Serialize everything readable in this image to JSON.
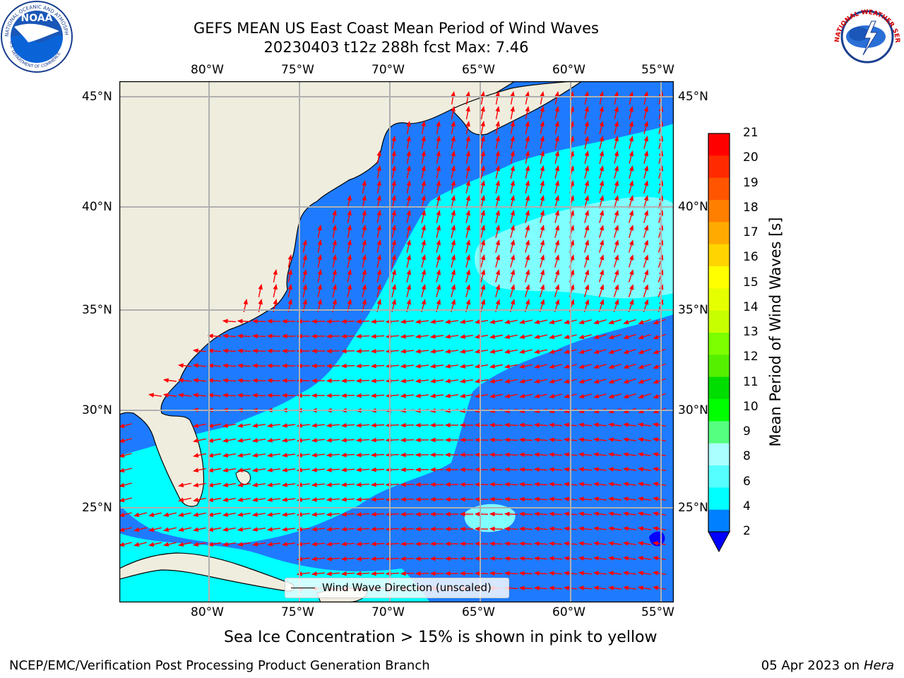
{
  "header": {
    "title_line1": "GEFS MEAN US East Coast Mean Period of Wind Waves",
    "title_line2": "20230403 t12z 288h fcst   Max: 7.46"
  },
  "logos": {
    "left_ring_text": "NATIONAL OCEANIC AND ATMOSPHERIC ADMINISTRATION",
    "left_bottom_text": "U.S. DEPARTMENT OF COMMERCE",
    "left_center_text": "NOAA",
    "right_ring_text": "NATIONAL WEATHER SERVICE"
  },
  "map": {
    "lon_labels": [
      "80°W",
      "75°W",
      "70°W",
      "65°W",
      "60°W",
      "55°W"
    ],
    "lat_labels": [
      "45°N",
      "40°N",
      "35°N",
      "30°N",
      "25°N"
    ],
    "colors": {
      "land": "#efedde",
      "ocean_low": "#1e7bff",
      "ocean_mid": "#00ffff",
      "ocean_high": "#80ffff",
      "arrow": "#ff0000",
      "grid": "#b0b0b0"
    },
    "legend_label": "Wind Wave Direction (unscaled)",
    "caption": "Sea Ice Concentration > 15% is shown in pink to yellow"
  },
  "colorbar": {
    "label": "Mean Period of Wind Waves [s]",
    "ticks": [
      "21",
      "20",
      "19",
      "18",
      "17",
      "16",
      "15",
      "14",
      "13",
      "12",
      "11",
      "10",
      "9",
      "8",
      "6",
      "4",
      "2"
    ],
    "colors": [
      "#ff0000",
      "#ff2a00",
      "#ff5500",
      "#ff7f00",
      "#ffaa00",
      "#ffd400",
      "#ffff00",
      "#e6ff00",
      "#c8ff00",
      "#7dff00",
      "#55ef00",
      "#00dd00",
      "#00ff00",
      "#55ff80",
      "#aaffff",
      "#55ffff",
      "#00ffff",
      "#0080ff"
    ],
    "extend_color": "#0000ff"
  },
  "footer": {
    "left": "NCEP/EMC/Verification Post Processing Product Generation Branch",
    "right_date": "05 Apr 2023 on ",
    "right_host": "Hera"
  }
}
